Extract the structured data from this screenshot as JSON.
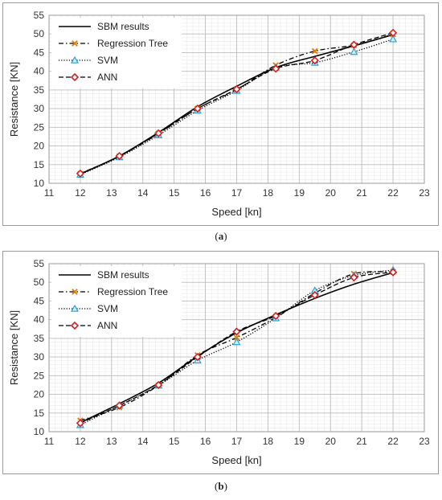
{
  "captions": {
    "a": "a",
    "b": "b"
  },
  "chart_data": [
    {
      "id": "a",
      "type": "line",
      "xlabel": "Speed [kn]",
      "ylabel": "Resistance [KN]",
      "xlim": [
        11,
        23
      ],
      "ylim": [
        10,
        55
      ],
      "xticks": [
        "11",
        "12",
        "13",
        "14",
        "15",
        "16",
        "17",
        "18",
        "19",
        "20",
        "21",
        "22",
        "23"
      ],
      "yticks": [
        "10",
        "15",
        "20",
        "25",
        "30",
        "35",
        "40",
        "45",
        "50",
        "55"
      ],
      "grid": true,
      "legend_position": "top-left",
      "series": [
        {
          "name": "SBM results",
          "style": "solid",
          "color": "#000000",
          "x": [
            12,
            13.25,
            14.5,
            15.75,
            17,
            18.25,
            19.5,
            20.75,
            22
          ],
          "y": [
            12.5,
            17.3,
            23.6,
            30.5,
            36.0,
            41.0,
            44.0,
            46.8,
            49.8
          ]
        },
        {
          "name": "Regression Tree",
          "style": "dashdot",
          "color": "#000000",
          "marker": "x",
          "marker_color": "#e07b00",
          "x": [
            12,
            13.25,
            14.5,
            15.75,
            17,
            18.25,
            19.5,
            20.75,
            22
          ],
          "y": [
            12.5,
            17.2,
            23.3,
            30.0,
            35.1,
            41.6,
            45.4,
            47.0,
            49.9
          ]
        },
        {
          "name": "SVM",
          "style": "dotted",
          "color": "#000000",
          "marker": "triangle",
          "marker_color": "#29a3d6",
          "x": [
            12,
            13.25,
            14.5,
            15.75,
            17,
            18.25,
            19.5,
            20.75,
            22
          ],
          "y": [
            12.3,
            17.0,
            22.9,
            29.5,
            34.8,
            41.0,
            42.3,
            45.2,
            48.6
          ]
        },
        {
          "name": "ANN",
          "style": "dashed",
          "color": "#000000",
          "marker": "diamond",
          "marker_color": "#d62020",
          "x": [
            12,
            13.25,
            14.5,
            15.75,
            17,
            18.25,
            19.5,
            20.75,
            22
          ],
          "y": [
            12.6,
            17.3,
            23.4,
            30.0,
            35.2,
            40.7,
            42.9,
            47.1,
            50.3
          ]
        }
      ]
    },
    {
      "id": "b",
      "type": "line",
      "xlabel": "Speed [kn]",
      "ylabel": "Resistance [KN]",
      "xlim": [
        11,
        23
      ],
      "ylim": [
        10,
        55
      ],
      "xticks": [
        "11",
        "12",
        "13",
        "14",
        "15",
        "16",
        "17",
        "18",
        "19",
        "20",
        "21",
        "22",
        "23"
      ],
      "yticks": [
        "10",
        "15",
        "20",
        "25",
        "30",
        "35",
        "40",
        "45",
        "50",
        "55"
      ],
      "grid": true,
      "legend_position": "top-left",
      "series": [
        {
          "name": "SBM results",
          "style": "solid",
          "color": "#000000",
          "x": [
            12,
            13.25,
            14.5,
            15.75,
            17,
            18.25,
            19.5,
            20.75,
            22
          ],
          "y": [
            12.4,
            17.5,
            23.0,
            30.2,
            36.5,
            41.3,
            45.7,
            49.5,
            52.6
          ]
        },
        {
          "name": "Regression Tree",
          "style": "dashdot",
          "color": "#000000",
          "marker": "x",
          "marker_color": "#e07b00",
          "x": [
            12,
            13.25,
            14.5,
            15.75,
            17,
            18.25,
            19.5,
            20.75,
            22
          ],
          "y": [
            13.0,
            16.5,
            22.4,
            30.5,
            35.2,
            40.6,
            47.1,
            52.3,
            52.8
          ]
        },
        {
          "name": "SVM",
          "style": "dotted",
          "color": "#000000",
          "marker": "triangle",
          "marker_color": "#29a3d6",
          "x": [
            12,
            13.25,
            14.5,
            15.75,
            17,
            18.25,
            19.5,
            20.75,
            22
          ],
          "y": [
            11.8,
            17.0,
            22.4,
            29.1,
            34.0,
            40.4,
            47.8,
            51.8,
            53.3
          ]
        },
        {
          "name": "ANN",
          "style": "dashed",
          "color": "#000000",
          "marker": "diamond",
          "marker_color": "#d62020",
          "x": [
            12,
            13.25,
            14.5,
            15.75,
            17,
            18.25,
            19.5,
            20.75,
            22
          ],
          "y": [
            12.3,
            17.0,
            22.5,
            30.0,
            36.8,
            41.0,
            46.6,
            51.3,
            52.7
          ]
        }
      ]
    }
  ]
}
